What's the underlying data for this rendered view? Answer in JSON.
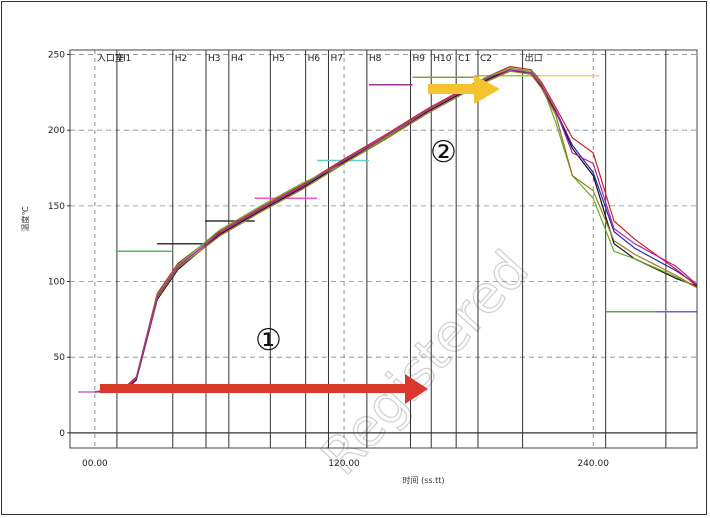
{
  "chart_data": {
    "type": "line",
    "xlabel": "时间 (ss.tt)",
    "ylabel": "温度℃",
    "xlim": [
      -12,
      290
    ],
    "ylim": [
      -10,
      253
    ],
    "x_ticks": [
      {
        "value": 0,
        "label": "00.00"
      },
      {
        "value": 120,
        "label": "120.00"
      },
      {
        "value": 240,
        "label": "240.00"
      }
    ],
    "y_ticks": [
      0,
      50,
      100,
      150,
      200,
      250
    ],
    "zones": [
      {
        "label": "入口室",
        "x": 0
      },
      {
        "label": "H1",
        "x": 10.6
      },
      {
        "label": "H2",
        "x": 21.2
      },
      {
        "label": "H3",
        "x": 31.8
      },
      {
        "label": "H4",
        "x": 42.4
      },
      {
        "label": "H5",
        "x": 53.0
      },
      {
        "label": "H6",
        "x": 63.6
      },
      {
        "label": "H7",
        "x": 74.2
      },
      {
        "label": "H8",
        "x": 84.8
      },
      {
        "label": "H9",
        "x": 95.4
      },
      {
        "label": "H10",
        "x": 106
      },
      {
        "label": "C1",
        "x": 116.6
      },
      {
        "label": "C2",
        "x": 127.2
      },
      {
        "label": "出口",
        "x": 137.8
      }
    ],
    "zone_boundaries": [
      10.6,
      37.5,
      53.5,
      64.5,
      84.5,
      101.5,
      112.5,
      131,
      152,
      162,
      174,
      184.5,
      206,
      246,
      275
    ],
    "setpoints": [
      {
        "color": "#cc66cc",
        "x": [
          -8,
          8
        ],
        "y": 27
      },
      {
        "color": "#55bb55",
        "x": [
          10,
          37
        ],
        "y": 120
      },
      {
        "color": "#333333",
        "x": [
          30,
          53
        ],
        "y": 125
      },
      {
        "color": "#333333",
        "x": [
          53,
          77
        ],
        "y": 140
      },
      {
        "color": "#ee55cc",
        "x": [
          77,
          107
        ],
        "y": 155
      },
      {
        "color": "#66cccc",
        "x": [
          107,
          132
        ],
        "y": 180
      },
      {
        "color": "#993399",
        "x": [
          132,
          153
        ],
        "y": 230
      },
      {
        "color": "#999933",
        "x": [
          153,
          183
        ],
        "y": 235
      },
      {
        "color": "#99cc33",
        "x": [
          183,
          214
        ],
        "y": 236
      },
      {
        "color": "#ffcc66",
        "x": [
          214,
          243
        ],
        "y": 236
      },
      {
        "color": "#55aa55",
        "x": [
          246,
          270
        ],
        "y": 80
      },
      {
        "color": "#6666cc",
        "x": [
          270,
          290
        ],
        "y": 80
      }
    ],
    "series": [
      {
        "color": "#2a2ab0",
        "x": [
          0,
          10,
          16,
          20,
          30,
          40,
          60,
          80,
          100,
          120,
          140,
          160,
          180,
          190,
          200,
          210,
          215,
          222,
          230,
          240,
          250,
          260,
          280,
          290
        ],
        "y": [
          27,
          29,
          31,
          36,
          90,
          110,
          132,
          148,
          163,
          180,
          196,
          213,
          228,
          235,
          240,
          238,
          230,
          213,
          190,
          172,
          133,
          122,
          107,
          98
        ]
      },
      {
        "color": "#cc2222",
        "x": [
          0,
          10,
          16,
          20,
          30,
          40,
          60,
          80,
          100,
          120,
          140,
          160,
          180,
          190,
          200,
          210,
          215,
          222,
          230,
          240,
          250,
          260,
          280,
          290
        ],
        "y": [
          27,
          29,
          32,
          37,
          92,
          112,
          133,
          149,
          164,
          181,
          197,
          214,
          229,
          236,
          242,
          240,
          232,
          215,
          195,
          185,
          140,
          128,
          108,
          97
        ]
      },
      {
        "color": "#111111",
        "x": [
          0,
          10,
          16,
          20,
          30,
          40,
          60,
          80,
          100,
          120,
          140,
          160,
          180,
          190,
          200,
          210,
          215,
          222,
          230,
          240,
          250,
          260,
          280,
          290
        ],
        "y": [
          27,
          29,
          30,
          35,
          88,
          108,
          131,
          147,
          162,
          179,
          195,
          212,
          227,
          234,
          240,
          237,
          229,
          212,
          188,
          170,
          125,
          115,
          102,
          97
        ]
      },
      {
        "color": "#66aa22",
        "x": [
          0,
          10,
          16,
          20,
          30,
          40,
          60,
          80,
          100,
          120,
          140,
          160,
          180,
          190,
          200,
          210,
          215,
          222,
          230,
          240,
          250,
          260,
          280,
          290
        ],
        "y": [
          27,
          29,
          31,
          36,
          91,
          111,
          134,
          150,
          165,
          178,
          195,
          213,
          228,
          236,
          241,
          239,
          231,
          205,
          170,
          155,
          120,
          115,
          103,
          96
        ]
      },
      {
        "color": "#997722",
        "x": [
          0,
          10,
          16,
          20,
          30,
          40,
          60,
          80,
          100,
          120,
          140,
          160,
          180,
          190,
          200,
          210,
          215,
          222,
          230,
          240,
          250,
          260,
          280,
          290
        ],
        "y": [
          27,
          29,
          31,
          36,
          89,
          109,
          130,
          146,
          161,
          178,
          194,
          211,
          226,
          233,
          239,
          237,
          228,
          210,
          170,
          160,
          127,
          118,
          104,
          96
        ]
      },
      {
        "color": "#aa22aa",
        "x": [
          0,
          10,
          16,
          20,
          30,
          40,
          60,
          80,
          100,
          120,
          140,
          160,
          180,
          190,
          200,
          210,
          215,
          222,
          230,
          240,
          250,
          260,
          280,
          290
        ],
        "y": [
          27,
          29,
          31,
          36,
          90,
          110,
          132,
          148,
          163,
          180,
          196,
          213,
          228,
          235,
          240,
          238,
          230,
          213,
          185,
          178,
          135,
          125,
          110,
          98
        ]
      }
    ],
    "annotations": [
      {
        "text": "①"
      },
      {
        "text": "②"
      }
    ]
  },
  "watermark": "Registered"
}
